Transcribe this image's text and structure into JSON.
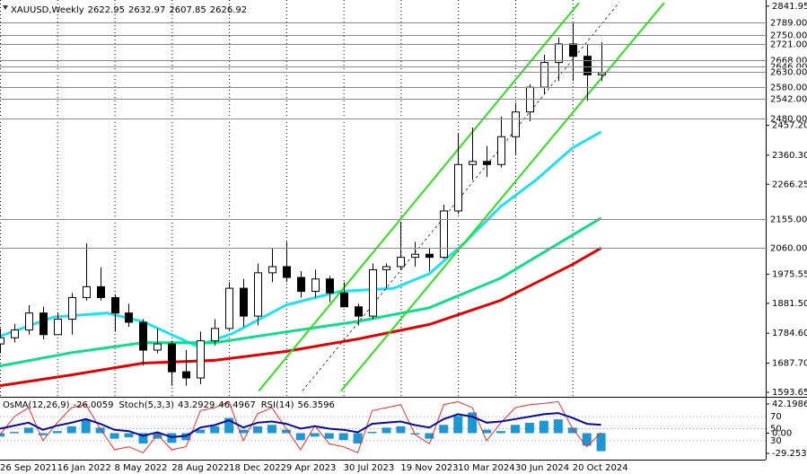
{
  "chart_data": [
    {
      "type": "candlestick",
      "title": "XAUUSD,Weekly",
      "header_values": [
        2622.95,
        2632.97,
        2607.85,
        2626.92
      ],
      "x": [
        0,
        4,
        8,
        12,
        16,
        20,
        24,
        28,
        32,
        36,
        40,
        44,
        48,
        52,
        56,
        60,
        64,
        68,
        72,
        76,
        80,
        84,
        88,
        92,
        96,
        100,
        104,
        108,
        112,
        116,
        120,
        124,
        128,
        132,
        136,
        140,
        144,
        148,
        152,
        156,
        160,
        164,
        168
      ],
      "open": [
        1750,
        1770,
        1795,
        1850,
        1780,
        1830,
        1900,
        1935,
        1900,
        1850,
        1820,
        1730,
        1750,
        1660,
        1640,
        1760,
        1800,
        1930,
        1840,
        1980,
        2000,
        1965,
        1920,
        1960,
        1915,
        1870,
        1840,
        1990,
        2000,
        2030,
        2040,
        2030,
        2180,
        2330,
        2340,
        2330,
        2420,
        2500,
        2580,
        2660,
        2720,
        2680,
        2620
      ],
      "high": [
        1800,
        1815,
        1875,
        1870,
        1850,
        1915,
        2075,
        1998,
        1910,
        1880,
        1830,
        1800,
        1760,
        1730,
        1790,
        1830,
        1950,
        1960,
        2010,
        2060,
        2080,
        1985,
        1990,
        1970,
        1950,
        1880,
        2010,
        2010,
        2145,
        2080,
        2060,
        2200,
        2430,
        2450,
        2390,
        2485,
        2530,
        2590,
        2685,
        2740,
        2790,
        2720,
        2726
      ],
      "low": [
        1720,
        1755,
        1780,
        1765,
        1780,
        1780,
        1890,
        1890,
        1790,
        1805,
        1680,
        1720,
        1615,
        1615,
        1620,
        1745,
        1795,
        1805,
        1810,
        1950,
        1950,
        1900,
        1900,
        1885,
        1870,
        1810,
        1830,
        1930,
        1990,
        2000,
        1985,
        2025,
        2170,
        2280,
        2290,
        2320,
        2360,
        2470,
        2560,
        2600,
        2600,
        2536,
        2600
      ],
      "close": [
        1770,
        1795,
        1850,
        1780,
        1830,
        1900,
        1935,
        1900,
        1850,
        1820,
        1730,
        1750,
        1660,
        1640,
        1760,
        1800,
        1930,
        1840,
        1980,
        2000,
        1965,
        1920,
        1960,
        1915,
        1870,
        1840,
        1990,
        2000,
        2030,
        2040,
        2030,
        2180,
        2330,
        2340,
        2330,
        2420,
        2500,
        2580,
        2660,
        2720,
        2680,
        2620,
        2626.92
      ],
      "xlim": [
        0,
        214
      ],
      "xticks": [
        {
          "value": 0,
          "label": "26 Sep 2021"
        },
        {
          "value": 16,
          "label": "16 Jan 2022"
        },
        {
          "value": 32,
          "label": "8 May 2022"
        },
        {
          "value": 48,
          "label": "28 Aug 2022"
        },
        {
          "value": 64,
          "label": "18 Dec 2022"
        },
        {
          "value": 80,
          "label": "9 Apr 2023"
        },
        {
          "value": 96,
          "label": "30 Jul 2023"
        },
        {
          "value": 112,
          "label": "19 Nov 2023"
        },
        {
          "value": 128,
          "label": "10 Mar 2024"
        },
        {
          "value": 144,
          "label": "30 Jun 2024"
        },
        {
          "value": 160,
          "label": "20 Oct 2024"
        }
      ],
      "ylim": [
        1582,
        2862
      ],
      "yticks": [
        2841.95,
        {
          "value": 2457.2,
          "label": "2457.20"
        },
        {
          "value": 2360.3,
          "label": "2360.30"
        },
        2266.25,
        1975.55,
        {
          "value": 1881.5,
          "label": "1881.50"
        },
        {
          "value": 1784.6,
          "label": "1784.60"
        },
        {
          "value": 1687.7,
          "label": "1687.70"
        },
        1593.65
      ],
      "levels": [
        {
          "value": 2789,
          "label": "2789.00"
        },
        {
          "value": 2750,
          "label": "2750.00"
        },
        {
          "value": 2721,
          "label": "2721.00"
        },
        {
          "value": 2668,
          "label": "2668.00"
        },
        {
          "value": 2646,
          "label": "2646.00"
        },
        {
          "value": 2630,
          "label": "2630.00"
        },
        {
          "value": 2580,
          "label": "2580.00"
        },
        {
          "value": 2542,
          "label": "2542.00"
        },
        {
          "value": 2480,
          "label": "2480.00"
        },
        {
          "value": 2155,
          "label": "2155.00"
        },
        {
          "value": 2060,
          "label": "2060.00"
        }
      ],
      "grid": true,
      "lines": [
        {
          "color": "#22e0f0",
          "x": [
            0,
            15,
            30,
            40,
            55,
            65,
            80,
            95,
            110,
            120,
            130,
            140,
            150,
            160,
            168
          ],
          "values": [
            1775,
            1837,
            1850,
            1822,
            1743,
            1784,
            1876,
            1920,
            1930,
            1977,
            2079,
            2195,
            2282,
            2384,
            2436
          ]
        },
        {
          "color": "#10dc8c",
          "x": [
            0,
            20,
            40,
            60,
            80,
            100,
            120,
            140,
            160,
            168
          ],
          "values": [
            1679,
            1722,
            1754,
            1754,
            1789,
            1823,
            1867,
            1963,
            2102,
            2157
          ]
        },
        {
          "color": "#e00000",
          "x": [
            0,
            20,
            40,
            60,
            80,
            100,
            120,
            140,
            160,
            168
          ],
          "values": [
            1615,
            1650,
            1688,
            1697,
            1726,
            1766,
            1813,
            1891,
            2007,
            2060
          ]
        }
      ],
      "channels": [
        {
          "color": "#33dd22",
          "x": [
            72.3,
            161.8
          ],
          "values": [
            1598,
            2853
          ]
        },
        {
          "color": "#33dd22",
          "x": [
            95.3,
            185.6
          ],
          "values": [
            1598,
            2853
          ]
        },
        {
          "color": "#000000",
          "x": [
            84.5,
            173.1
          ],
          "values": [
            1598,
            2855
          ]
        }
      ]
    },
    {
      "type": "oscillator",
      "readings": [
        {
          "name": "OsMA(12,26,9)",
          "values": [
            -26.0059
          ]
        },
        {
          "name": "Stoch(5,3,3)",
          "values": [
            43.2929,
            46.4967
          ]
        },
        {
          "name": "RSI(14)",
          "values": [
            56.3596
          ]
        }
      ],
      "x": [
        0,
        4,
        8,
        12,
        16,
        20,
        24,
        28,
        32,
        36,
        40,
        44,
        48,
        52,
        56,
        60,
        64,
        68,
        72,
        76,
        80,
        84,
        88,
        92,
        96,
        100,
        104,
        108,
        112,
        116,
        120,
        124,
        128,
        132,
        136,
        140,
        144,
        148,
        152,
        156,
        160,
        164,
        168
      ],
      "xlim": [
        0,
        214
      ],
      "ylim": [
        0,
        100
      ],
      "yticks": [
        70,
        50,
        30
      ],
      "y2lim": [
        -37,
        50
      ],
      "y2ticks": [
        42.1986,
        {
          "value": 0,
          "label": "0.00"
        },
        -29.2538
      ],
      "series": [
        {
          "color": "#1e96d2",
          "axis": "y2",
          "style": "histogram",
          "values": [
            -5,
            2,
            8,
            -3,
            3,
            10,
            20,
            8,
            -8,
            -6,
            -15,
            -8,
            -14,
            -10,
            5,
            10,
            22,
            5,
            10,
            12,
            5,
            -10,
            -5,
            -8,
            -10,
            -15,
            2,
            8,
            10,
            -2,
            -8,
            12,
            25,
            30,
            5,
            3,
            12,
            15,
            18,
            20,
            8,
            -18,
            -26.0059
          ]
        },
        {
          "color": "#e03030",
          "style": "line",
          "values": [
            40,
            70,
            85,
            30,
            60,
            85,
            90,
            50,
            15,
            20,
            10,
            40,
            15,
            20,
            80,
            85,
            95,
            30,
            75,
            85,
            50,
            15,
            55,
            25,
            20,
            10,
            80,
            85,
            90,
            40,
            25,
            90,
            95,
            85,
            30,
            60,
            85,
            90,
            92,
            95,
            50,
            20,
            43.2929
          ]
        },
        {
          "color": "#0a0a9a",
          "style": "line",
          "values": [
            50,
            55,
            60,
            48,
            55,
            60,
            66,
            58,
            48,
            46,
            38,
            44,
            36,
            38,
            52,
            56,
            64,
            52,
            60,
            62,
            58,
            50,
            54,
            50,
            48,
            44,
            58,
            60,
            62,
            56,
            52,
            66,
            74,
            70,
            60,
            62,
            66,
            70,
            74,
            76,
            68,
            58,
            56.3596
          ]
        }
      ]
    }
  ]
}
